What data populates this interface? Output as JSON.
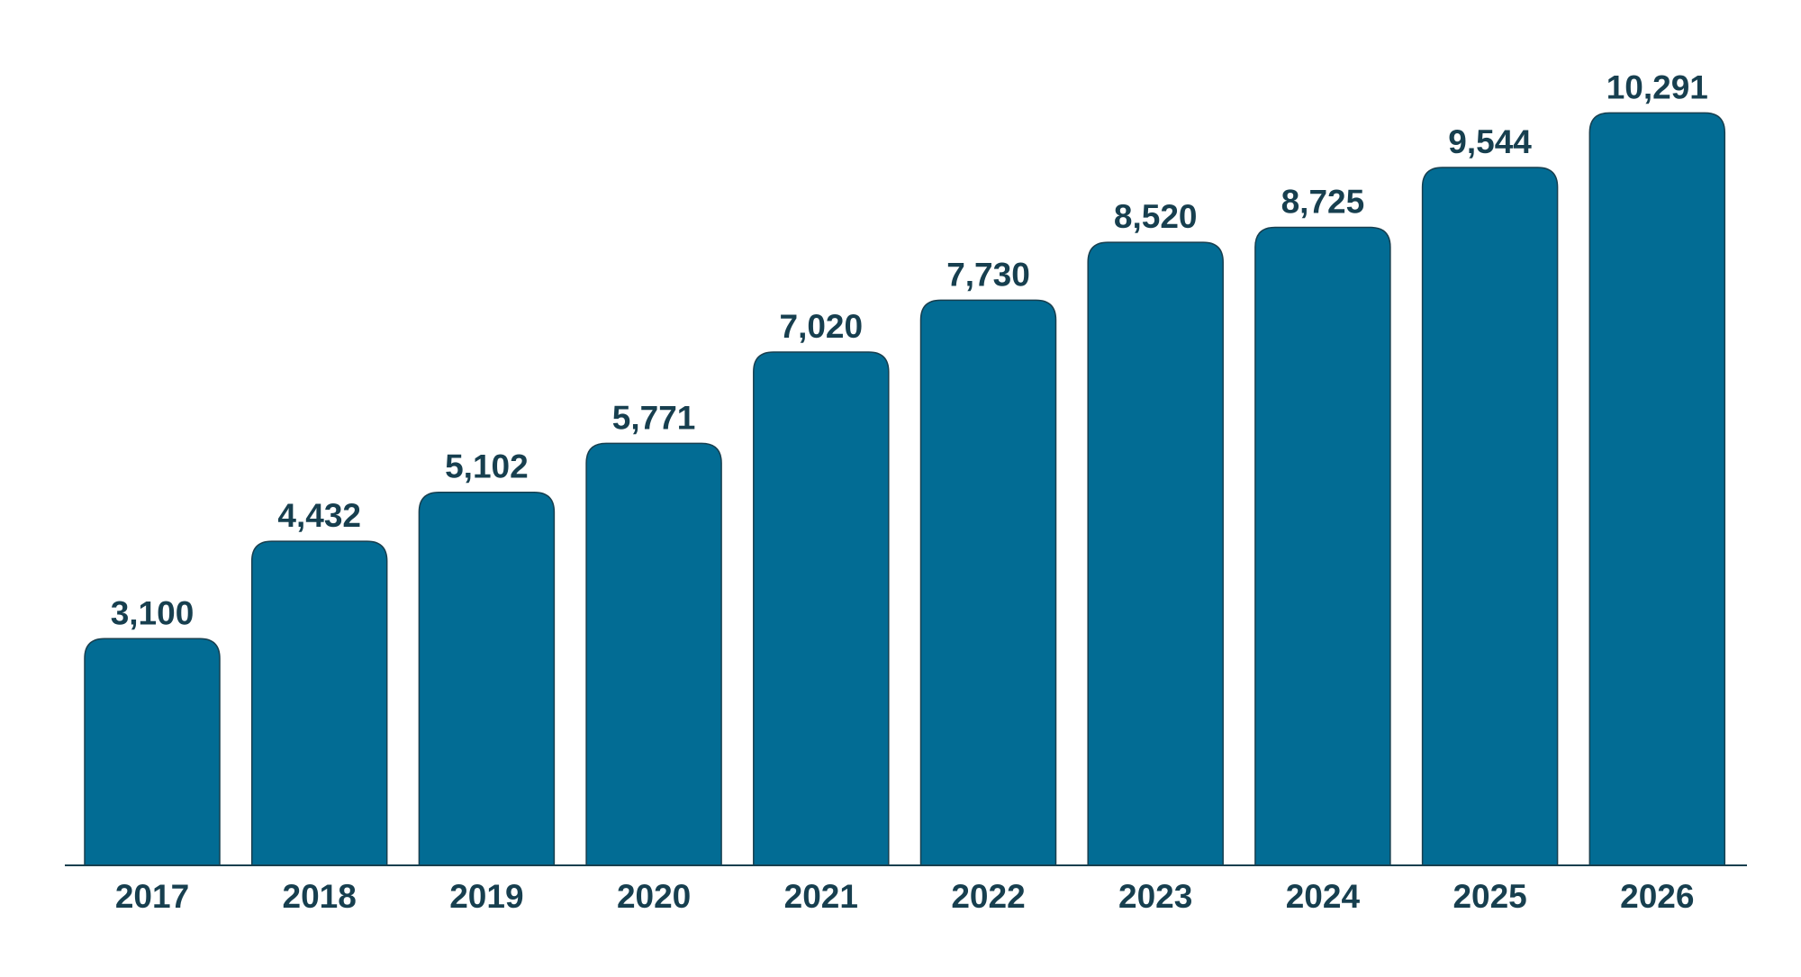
{
  "chart_data": {
    "type": "bar",
    "title": "",
    "xlabel": "",
    "ylabel": "",
    "categories": [
      "2017",
      "2018",
      "2019",
      "2020",
      "2021",
      "2022",
      "2023",
      "2024",
      "2025",
      "2026"
    ],
    "values": [
      3100,
      4432,
      5102,
      5771,
      7020,
      7730,
      8520,
      8725,
      9544,
      10291
    ],
    "value_labels": [
      "3,100",
      "4,432",
      "5,102",
      "5,771",
      "7,020",
      "7,730",
      "8,520",
      "8,725",
      "9,544",
      "10,291"
    ],
    "ylim": [
      0,
      11000
    ],
    "grid": false,
    "legend": "none",
    "colors": {
      "bar": "#026c94",
      "bar_outline": "#173f4f",
      "text": "#173f4f",
      "axis": "#173f4f",
      "background": "#ffffff"
    }
  }
}
